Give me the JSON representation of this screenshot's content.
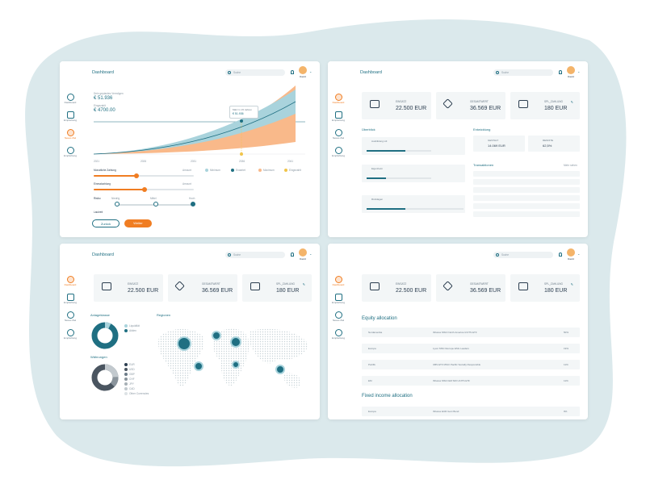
{
  "dashboard_title": "Dashboard",
  "search_placeholder": "Suche",
  "user_name": "David",
  "sidebar": {
    "item1": "Dashboard",
    "item2": "Empfehlung",
    "item3": "Neues Ziel",
    "item4": "Empfehlung"
  },
  "panel1": {
    "caption": "Dein geplantes Vermögen",
    "value1": "€ 51.936",
    "caption2": "Eingezahlt",
    "value2": "€ 4700.00",
    "tooltip_title": "März in 15 Jahren",
    "tooltip_value": "€ 51.936",
    "x_ticks": [
      "2021",
      "2026",
      "2031",
      "2036",
      "2041"
    ],
    "legend": [
      "Minimum",
      "Erwartet",
      "Maximum",
      "Eingezahlt"
    ],
    "slider1_label": "Monatliche Zahlung",
    "slider1_val": "Amount",
    "slider2_label": "Einmalzahlung",
    "slider2_val": "Amount",
    "risk_label": "Risiko",
    "risk_opts": [
      "Niedrig",
      "Mittel",
      "Hoch"
    ],
    "timeline_label": "Laufzeit",
    "btn_back": "Zurück",
    "btn_next": "Weiter"
  },
  "kpis": {
    "k1_label": "EINSATZ",
    "k1_val": "22.500 EUR",
    "k2_label": "GESAMTWERT",
    "k2_val": "36.569 EUR",
    "k3_label": "SPL_ZAHLUNG",
    "k3_val": "180 EUR"
  },
  "panel2": {
    "overview_title": "Überblick",
    "dev_title": "Entwicklung",
    "ov1": "Ausbildung Lili",
    "ov2": "Eigenheim",
    "ov3": "Rücklagen",
    "dev1_label": "GESTALT",
    "dev1_val": "14.069 EUR",
    "dev2_label": "RENDITE",
    "dev2_val": "62,5%",
    "tx_title": "Transaktionen",
    "tx_more": "Mehr sehen"
  },
  "panel3": {
    "assets_title": "Anlageklasse",
    "currency_title": "Währungen",
    "regions_title": "Regionen",
    "asset_legend": [
      "Liquidität",
      "Aktien"
    ],
    "currency_legend": [
      "EUR",
      "USD",
      "GBP",
      "CHF",
      "JPY",
      "CAD",
      "Other Currencies"
    ]
  },
  "panel4": {
    "equity_title": "Equity allocation",
    "fixed_title": "Fixed income allocation",
    "rows": [
      {
        "region": "Nordamerika",
        "fund": "iShares MSCI North America UCITS ETF",
        "pct": "50%"
      },
      {
        "region": "Europa",
        "fund": "Lyxor MSCI Europe ESG Leaders",
        "pct": "19%"
      },
      {
        "region": "Pazifik",
        "fund": "UBS ETF MSCI Pacific Socially Responsible",
        "pct": "11%"
      },
      {
        "region": "EM",
        "fund": "iShares MSCI EM SRI UCITS ETF",
        "pct": "11%"
      }
    ],
    "fixed_rows": [
      {
        "region": "Europa",
        "fund": "iShares EUR Govt Bond",
        "pct": "9%"
      }
    ]
  }
}
